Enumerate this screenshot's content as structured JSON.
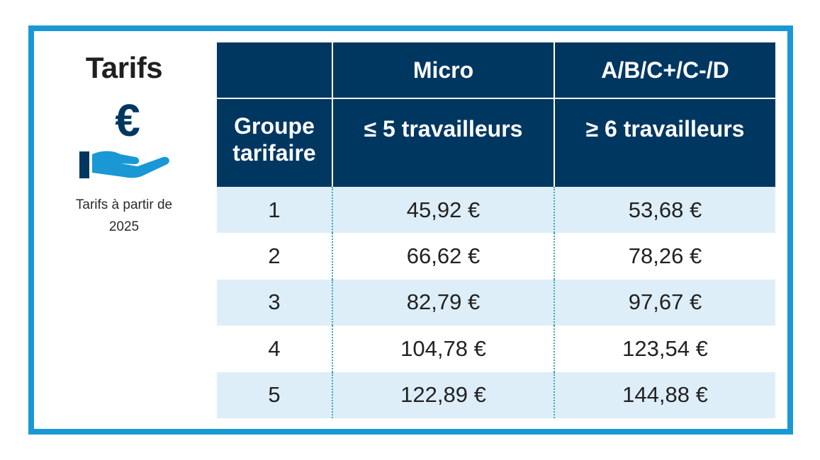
{
  "sidebar": {
    "title": "Tarifs",
    "icon": "euro-hand-icon",
    "caption": "Tarifs à partir de 2025"
  },
  "colors": {
    "frame": "#1a98d5",
    "header_bg": "#003761",
    "row_alt": "#ddeef8",
    "icon_dark": "#003761",
    "icon_light": "#1a98d5"
  },
  "table": {
    "header_top": [
      "",
      "Micro",
      "A/B/C+/C-/D"
    ],
    "header_bottom": [
      "Groupe\ntarifaire",
      "≤ 5 travailleurs",
      "≥ 6 travailleurs"
    ],
    "rows": [
      [
        "1",
        "45,92 €",
        "53,68 €"
      ],
      [
        "2",
        "66,62 €",
        "78,26 €"
      ],
      [
        "3",
        "82,79 €",
        "97,67 €"
      ],
      [
        "4",
        "104,78 €",
        "123,54 €"
      ],
      [
        "5",
        "122,89 €",
        "144,88 €"
      ]
    ]
  }
}
